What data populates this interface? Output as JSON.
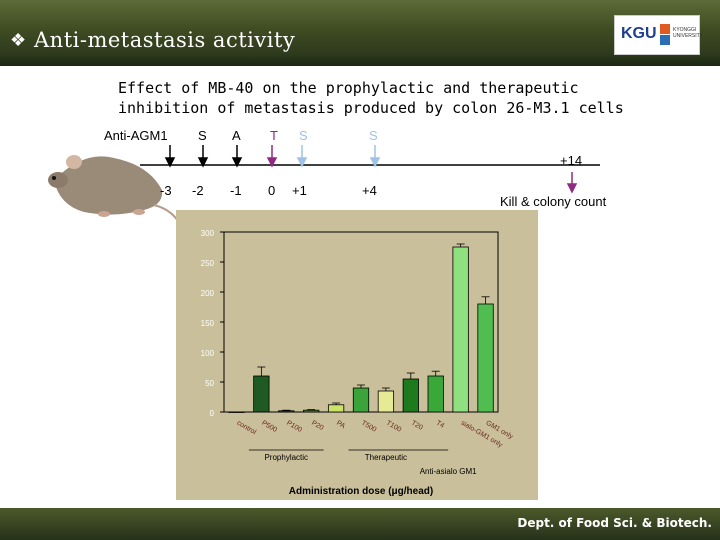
{
  "header": {
    "bullet": "❖",
    "title": "Anti-metastasis activity"
  },
  "logo": {
    "text": "KGU",
    "university_line1": "KYONGGI",
    "university_line2": "UNIVERSITY"
  },
  "subtitle": {
    "line1": "Effect of MB-40 on the prophylactic and therapeutic",
    "line2": "inhibition of metastasis produced by colon 26-M3.1 cells"
  },
  "timeline": {
    "treatment_labels": [
      "Anti-AGM1",
      "S",
      "A",
      "T",
      "S",
      "S"
    ],
    "day_labels": [
      "-3",
      "-2",
      "-1",
      "0",
      "+1",
      "+4"
    ],
    "day14_label": "+14",
    "kill_label": "Kill &  colony count"
  },
  "colors": {
    "header_bg": "#3f4c22",
    "arrow_dark": "#000000",
    "arrow_purple": "#8e2a84",
    "arrow_blue": "#9fc2e6",
    "chart_bg": "#c9bf9a"
  },
  "footer": {
    "text": "Dept. of Food Sci. & Biotech."
  },
  "chart_data": {
    "type": "bar",
    "categories": [
      "control",
      "P500",
      "P100",
      "P20",
      "PA",
      "T500",
      "T100",
      "T20",
      "T4",
      "sialo-GM1 only",
      "GM1 only"
    ],
    "values": [
      0,
      60,
      2,
      3,
      12,
      40,
      35,
      55,
      60,
      275,
      180
    ],
    "error": [
      0,
      15,
      1,
      1,
      3,
      5,
      5,
      10,
      8,
      5,
      12
    ],
    "bar_colors": [
      "#1e3a1e",
      "#1f5a23",
      "#2d6e2a",
      "#5a8f2e",
      "#cce36a",
      "#3aa33a",
      "#e6ea95",
      "#1d7a1d",
      "#39a839",
      "#8fe07e",
      "#4fbd4f"
    ],
    "ylim": [
      0,
      300
    ],
    "yticks": [
      "0",
      "50",
      "100",
      "150",
      "200",
      "250",
      "300"
    ],
    "group_labels": [
      "Prophylactic",
      "Therapeutic"
    ],
    "extra_label": "Anti-asialo GM1",
    "xlabel": "Administration dose (μg/head)"
  }
}
